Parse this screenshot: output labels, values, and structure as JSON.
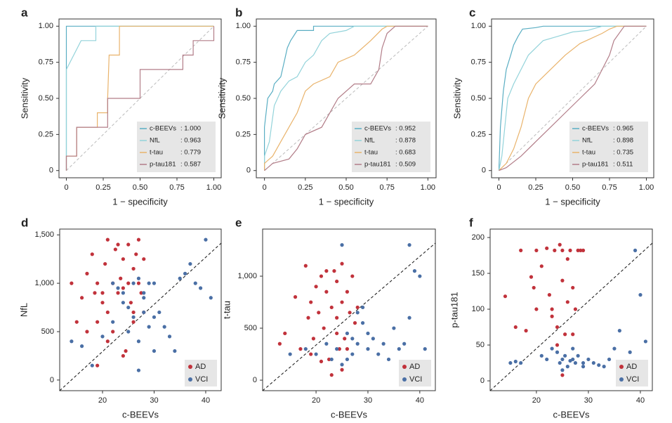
{
  "chart_data": [
    {
      "type": "line",
      "label": "a",
      "xlabel": "1 − specificity",
      "ylabel": "Sensitivity",
      "xlim": [
        -0.05,
        1.05
      ],
      "ylim": [
        -0.05,
        1.05
      ],
      "xticks": [
        0,
        0.25,
        {
          "value": 0.5,
          "label": "0.50"
        },
        0.75,
        {
          "value": 1,
          "label": "1.00"
        }
      ],
      "yticks": [
        0,
        0.25,
        {
          "value": 0.5,
          "label": "0.50"
        },
        0.75,
        {
          "value": 1,
          "label": "1.00"
        }
      ],
      "series": [
        {
          "name": "c-BEEVs",
          "auc": ": 1.000",
          "color": "#5aaec3",
          "x": [
            0,
            0,
            1
          ],
          "values": [
            0,
            1,
            1
          ]
        },
        {
          "name": "NfL",
          "auc": ": 0.963",
          "color": "#93d3da",
          "x": [
            0,
            0,
            0.05,
            0.1,
            0.2,
            0.2,
            1
          ],
          "values": [
            0,
            0.7,
            0.8,
            0.9,
            0.9,
            1,
            1
          ]
        },
        {
          "name": "t-tau",
          "auc": ": 0.779",
          "color": "#e9b36b",
          "x": [
            0,
            0,
            0.07,
            0.07,
            0.21,
            0.21,
            0.28,
            0.28,
            0.29,
            0.36,
            0.36,
            1
          ],
          "values": [
            0,
            0.1,
            0.1,
            0.3,
            0.3,
            0.4,
            0.4,
            0.5,
            0.8,
            0.8,
            1,
            1
          ]
        },
        {
          "name": "p-tau181",
          "auc": ": 0.587",
          "color": "#b27d88",
          "x": [
            0,
            0,
            0.07,
            0.07,
            0.28,
            0.28,
            0.5,
            0.5,
            0.79,
            0.79,
            0.86,
            0.86,
            1,
            1
          ],
          "values": [
            0,
            0.1,
            0.1,
            0.3,
            0.3,
            0.5,
            0.5,
            0.7,
            0.7,
            0.8,
            0.8,
            0.9,
            0.9,
            1
          ]
        }
      ]
    },
    {
      "type": "line",
      "label": "b",
      "xlabel": "1 − specificity",
      "ylabel": "Sensitivity",
      "xlim": [
        -0.05,
        1.05
      ],
      "ylim": [
        -0.05,
        1.05
      ],
      "xticks": [
        0,
        0.25,
        {
          "value": 0.5,
          "label": "0.50"
        },
        0.75,
        {
          "value": 1,
          "label": "1.00"
        }
      ],
      "yticks": [
        0,
        0.25,
        {
          "value": 0.5,
          "label": "0.50"
        },
        0.75,
        {
          "value": 1,
          "label": "1.00"
        }
      ],
      "series": [
        {
          "name": "c-BEEVs",
          "auc": ": 0.952",
          "color": "#5aaec3",
          "x": [
            0,
            0,
            0.02,
            0.05,
            0.06,
            0.1,
            0.12,
            0.14,
            0.16,
            0.2,
            0.3,
            0.3,
            1
          ],
          "values": [
            0,
            0.3,
            0.5,
            0.55,
            0.6,
            0.65,
            0.75,
            0.85,
            0.9,
            0.97,
            0.97,
            1,
            1
          ]
        },
        {
          "name": "NfL",
          "auc": ": 0.878",
          "color": "#93d3da",
          "x": [
            0,
            0,
            0.03,
            0.06,
            0.1,
            0.15,
            0.2,
            0.25,
            0.3,
            0.35,
            0.4,
            0.5,
            0.55,
            1
          ],
          "values": [
            0,
            0.1,
            0.2,
            0.45,
            0.55,
            0.62,
            0.65,
            0.75,
            0.8,
            0.9,
            0.95,
            0.97,
            1,
            1
          ]
        },
        {
          "name": "t-tau",
          "auc": ": 0.683",
          "color": "#e9b36b",
          "x": [
            0,
            0,
            0.05,
            0.1,
            0.15,
            0.2,
            0.25,
            0.3,
            0.4,
            0.45,
            0.55,
            0.65,
            0.72,
            0.75,
            1
          ],
          "values": [
            0,
            0.05,
            0.1,
            0.2,
            0.3,
            0.4,
            0.55,
            0.6,
            0.65,
            0.75,
            0.8,
            0.9,
            0.98,
            1,
            1
          ]
        },
        {
          "name": "p-tau181",
          "auc": ": 0.509",
          "color": "#b27d88",
          "x": [
            0,
            0.05,
            0.15,
            0.2,
            0.25,
            0.35,
            0.45,
            0.55,
            0.65,
            0.7,
            0.72,
            0.75,
            0.8,
            1
          ],
          "values": [
            0,
            0.05,
            0.08,
            0.15,
            0.25,
            0.3,
            0.5,
            0.6,
            0.6,
            0.7,
            0.85,
            0.95,
            1,
            1
          ]
        }
      ]
    },
    {
      "type": "line",
      "label": "c",
      "xlabel": "1 − specificity",
      "ylabel": "Sensitivity",
      "xlim": [
        -0.05,
        1.05
      ],
      "ylim": [
        -0.05,
        1.05
      ],
      "xticks": [
        0,
        0.25,
        {
          "value": 0.5,
          "label": "0.50"
        },
        0.75,
        {
          "value": 1,
          "label": "1.00"
        }
      ],
      "yticks": [
        0,
        0.25,
        {
          "value": 0.5,
          "label": "0.50"
        },
        0.75,
        {
          "value": 1,
          "label": "1.00"
        }
      ],
      "series": [
        {
          "name": "c-BEEVs",
          "auc": ": 0.965",
          "color": "#5aaec3",
          "x": [
            0,
            0.01,
            0.03,
            0.05,
            0.08,
            0.1,
            0.13,
            0.16,
            0.25,
            0.3,
            1
          ],
          "values": [
            0,
            0.3,
            0.55,
            0.7,
            0.8,
            0.87,
            0.93,
            0.98,
            0.99,
            1,
            1
          ]
        },
        {
          "name": "NfL",
          "auc": ": 0.898",
          "color": "#93d3da",
          "x": [
            0,
            0.02,
            0.04,
            0.06,
            0.1,
            0.15,
            0.2,
            0.25,
            0.3,
            0.4,
            0.5,
            0.6,
            0.7,
            1
          ],
          "values": [
            0,
            0.1,
            0.3,
            0.5,
            0.6,
            0.7,
            0.8,
            0.85,
            0.9,
            0.93,
            0.96,
            0.97,
            1,
            1
          ]
        },
        {
          "name": "t-tau",
          "auc": ": 0.735",
          "color": "#e9b36b",
          "x": [
            0,
            0.05,
            0.1,
            0.15,
            0.2,
            0.25,
            0.35,
            0.45,
            0.55,
            0.7,
            0.75,
            0.8,
            1
          ],
          "values": [
            0,
            0.05,
            0.15,
            0.3,
            0.5,
            0.6,
            0.7,
            0.8,
            0.88,
            0.95,
            0.98,
            1,
            1
          ]
        },
        {
          "name": "p-tau181",
          "auc": ": 0.511",
          "color": "#b27d88",
          "x": [
            0,
            0.05,
            0.15,
            0.25,
            0.35,
            0.45,
            0.55,
            0.65,
            0.7,
            0.75,
            0.78,
            0.85,
            1
          ],
          "values": [
            0,
            0.02,
            0.1,
            0.2,
            0.3,
            0.4,
            0.5,
            0.6,
            0.7,
            0.8,
            0.9,
            1,
            1
          ]
        }
      ]
    },
    {
      "type": "scatter",
      "label": "d",
      "xlabel": "c-BEEVs",
      "ylabel": "NfL",
      "xlim": [
        11.7,
        43
      ],
      "ylim": [
        -110,
        1560
      ],
      "xticks": [
        20,
        30,
        40
      ],
      "yticks": [
        0,
        500,
        {
          "value": 1000,
          "label": "1,000"
        },
        {
          "value": 1500,
          "label": "1,500"
        }
      ],
      "series": [
        {
          "name": "AD",
          "color": "#c1323b",
          "x": [
            17,
            18,
            18.5,
            19,
            19,
            20,
            20.5,
            21,
            21,
            22,
            22,
            22.5,
            23,
            23,
            23.5,
            24,
            24,
            24.5,
            25,
            25,
            25.5,
            26,
            26,
            26.5,
            27,
            27,
            27.5,
            28,
            28,
            16,
            14,
            15,
            19,
            21,
            24,
            26,
            17,
            20
          ],
          "values": [
            1100,
            1300,
            900,
            1000,
            600,
            800,
            1200,
            1450,
            700,
            1000,
            500,
            1350,
            900,
            1400,
            1050,
            950,
            1250,
            300,
            1000,
            1400,
            800,
            1150,
            600,
            1300,
            1000,
            1450,
            900,
            700,
            1250,
            850,
            1000,
            600,
            150,
            400,
            250,
            700,
            500,
            900
          ]
        },
        {
          "name": "VCI",
          "color": "#4a6fa5",
          "x": [
            14,
            16,
            18,
            20,
            22,
            23,
            24,
            25,
            26,
            26,
            27,
            27,
            28,
            28,
            29,
            29,
            30,
            30,
            31,
            32,
            33,
            34,
            35,
            36,
            37,
            38,
            39,
            40,
            41,
            24,
            27,
            22,
            28,
            30,
            25
          ],
          "values": [
            400,
            350,
            150,
            450,
            600,
            950,
            800,
            500,
            1000,
            650,
            1050,
            400,
            900,
            700,
            550,
            1000,
            650,
            300,
            700,
            550,
            450,
            300,
            1050,
            1100,
            1200,
            1000,
            950,
            1450,
            850,
            900,
            100,
            1000,
            850,
            1000,
            750
          ]
        }
      ]
    },
    {
      "type": "scatter",
      "label": "e",
      "xlabel": "c-BEEVs",
      "ylabel": "t-tau",
      "xlim": [
        9.7,
        43
      ],
      "ylim": [
        -101,
        1453
      ],
      "xticks": [
        20,
        30,
        40
      ],
      "yticks": [
        0,
        500,
        {
          "value": 1000,
          "label": "1,000"
        }
      ],
      "series": [
        {
          "name": "AD",
          "color": "#c1323b",
          "x": [
            13,
            14,
            16,
            17,
            18,
            18.5,
            19,
            19.5,
            20,
            20.5,
            21,
            21.5,
            22,
            22.5,
            23,
            23.5,
            24,
            24,
            24.5,
            25,
            25,
            25.5,
            26,
            26.5,
            27,
            27.5,
            28,
            19,
            21,
            23,
            25,
            22,
            26,
            24
          ],
          "values": [
            350,
            450,
            800,
            300,
            1100,
            600,
            750,
            400,
            900,
            650,
            1000,
            500,
            850,
            200,
            700,
            1050,
            600,
            950,
            300,
            750,
            1120,
            400,
            850,
            650,
            1000,
            550,
            700,
            250,
            180,
            50,
            100,
            1050,
            300,
            450
          ]
        },
        {
          "name": "VCI",
          "color": "#4a6fa5",
          "x": [
            15,
            18,
            20,
            22,
            24,
            25,
            26,
            27,
            27,
            28,
            28,
            29,
            30,
            31,
            32,
            33,
            34,
            35,
            36,
            37,
            38,
            38,
            39,
            40,
            41,
            25,
            26,
            29,
            23,
            30
          ],
          "values": [
            250,
            300,
            250,
            350,
            300,
            1300,
            450,
            400,
            250,
            650,
            350,
            550,
            300,
            400,
            250,
            350,
            200,
            500,
            300,
            350,
            1300,
            600,
            1050,
            1000,
            300,
            150,
            200,
            700,
            200,
            450
          ]
        }
      ]
    },
    {
      "type": "scatter",
      "label": "f",
      "xlabel": "c-BEEVs",
      "ylabel": "p-tau181",
      "xlim": [
        11.1,
        42.3
      ],
      "ylim": [
        -13.7,
        211.8
      ],
      "xticks": [
        20,
        30,
        40
      ],
      "yticks": [
        0,
        50,
        100,
        150,
        200
      ],
      "series": [
        {
          "name": "AD",
          "color": "#c1323b",
          "x": [
            14,
            16,
            17,
            18,
            19,
            19.5,
            20,
            21,
            22,
            22.5,
            23,
            23.5,
            24,
            24.5,
            25,
            25,
            25.5,
            26,
            26.5,
            27,
            27.5,
            28,
            28.5,
            29,
            24,
            26,
            27,
            20,
            23,
            25
          ],
          "values": [
            118,
            75,
            182,
            70,
            145,
            130,
            182,
            160,
            185,
            120,
            100,
            182,
            75,
            190,
            140,
            182,
            65,
            170,
            182,
            130,
            100,
            182,
            182,
            182,
            50,
            110,
            65,
            100,
            90,
            8
          ]
        },
        {
          "name": "VCI",
          "color": "#4a6fa5",
          "x": [
            15,
            16,
            17,
            21,
            22,
            23,
            24,
            24.5,
            25,
            25.5,
            26,
            26.5,
            27,
            27.5,
            28,
            29,
            30,
            31,
            32,
            34,
            35,
            36,
            38,
            39,
            40,
            41,
            25,
            27,
            29,
            33
          ],
          "values": [
            25,
            27,
            25,
            35,
            30,
            45,
            40,
            25,
            30,
            35,
            20,
            28,
            30,
            25,
            35,
            20,
            30,
            25,
            22,
            30,
            45,
            70,
            40,
            182,
            120,
            55,
            15,
            45,
            25,
            20
          ]
        }
      ]
    }
  ]
}
